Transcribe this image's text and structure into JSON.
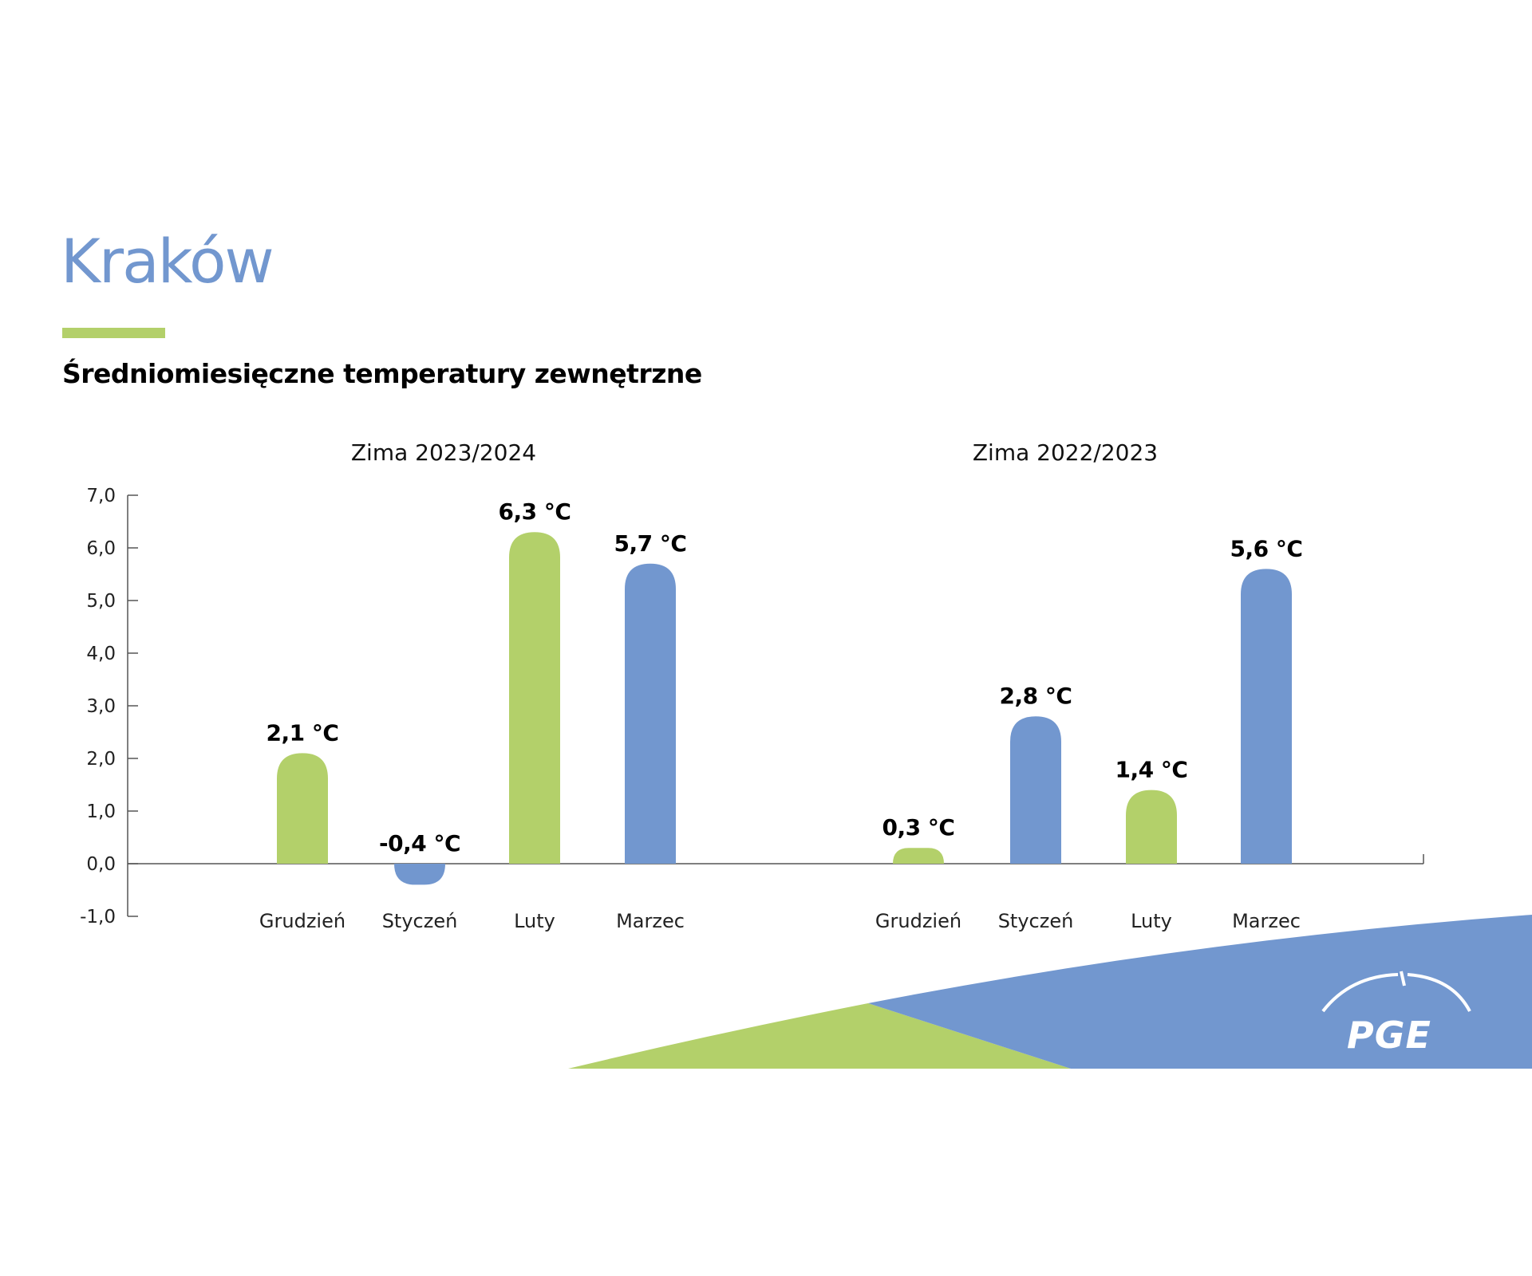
{
  "header": {
    "city": "Kraków",
    "subtitle": "Średniomiesięczne temperatury zewnętrzne"
  },
  "brand": {
    "logo_text": "PGE",
    "green": "#b3d06a",
    "blue": "#7297cf"
  },
  "chart_data": {
    "type": "bar",
    "unit_suffix": " °C",
    "ylim": [
      -1.0,
      7.0
    ],
    "yticks": [
      "7,0",
      "6,0",
      "5,0",
      "4,0",
      "3,0",
      "2,0",
      "1,0",
      "0,0",
      "-1,0"
    ],
    "groups": [
      {
        "title": "Zima 2023/2024",
        "categories": [
          "Grudzień",
          "Styczeń",
          "Luty",
          "Marzec"
        ],
        "values": [
          2.1,
          -0.4,
          6.3,
          5.7
        ],
        "labels": [
          "2,1 °C",
          "-0,4 °C",
          "6,3 °C",
          "5,7 °C"
        ],
        "colors": [
          "#b3d06a",
          "#7297cf",
          "#b3d06a",
          "#7297cf"
        ]
      },
      {
        "title": "Zima 2022/2023",
        "categories": [
          "Grudzień",
          "Styczeń",
          "Luty",
          "Marzec"
        ],
        "values": [
          0.3,
          2.8,
          1.4,
          5.6
        ],
        "labels": [
          "0,3 °C",
          "2,8 °C",
          "1,4 °C",
          "5,6 °C"
        ],
        "colors": [
          "#b3d06a",
          "#7297cf",
          "#b3d06a",
          "#7297cf"
        ]
      }
    ]
  }
}
